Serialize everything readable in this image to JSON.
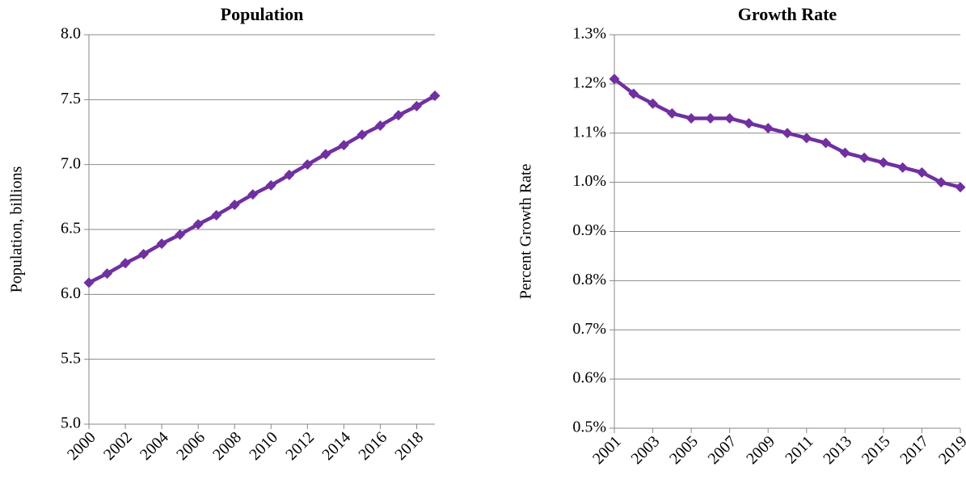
{
  "chart_data": [
    {
      "type": "line",
      "title": "Population",
      "y_label": "Population, billions",
      "x": [
        2000,
        2001,
        2002,
        2003,
        2004,
        2005,
        2006,
        2007,
        2008,
        2009,
        2010,
        2011,
        2012,
        2013,
        2014,
        2015,
        2016,
        2017,
        2018,
        2019
      ],
      "values": [
        6.09,
        6.16,
        6.24,
        6.31,
        6.39,
        6.46,
        6.54,
        6.61,
        6.69,
        6.77,
        6.84,
        6.92,
        7.0,
        7.08,
        7.15,
        7.23,
        7.3,
        7.38,
        7.45,
        7.53
      ],
      "color": "#7030a0",
      "xlim": [
        2000,
        2019
      ],
      "xticks": [
        2000,
        2002,
        2004,
        2006,
        2008,
        2010,
        2012,
        2014,
        2016,
        2018
      ],
      "ylim": [
        5,
        8
      ],
      "yticks": [
        {
          "value": 5,
          "label": "5.0"
        },
        {
          "value": 5.5,
          "label": "5.5"
        },
        {
          "value": 6,
          "label": "6.0"
        },
        {
          "value": 6.5,
          "label": "6.5"
        },
        {
          "value": 7,
          "label": "7.0"
        },
        {
          "value": 7.5,
          "label": "7.5"
        },
        {
          "value": 8,
          "label": "8.0"
        }
      ],
      "grid": true
    },
    {
      "type": "line",
      "title": "Growth Rate",
      "y_label": "Percent Growth Rate",
      "x": [
        2001,
        2002,
        2003,
        2004,
        2005,
        2006,
        2007,
        2008,
        2009,
        2010,
        2011,
        2012,
        2013,
        2014,
        2015,
        2016,
        2017,
        2018,
        2019
      ],
      "values": [
        1.21,
        1.18,
        1.16,
        1.14,
        1.13,
        1.13,
        1.13,
        1.12,
        1.11,
        1.1,
        1.09,
        1.08,
        1.06,
        1.05,
        1.04,
        1.03,
        1.02,
        1.0,
        0.99
      ],
      "color": "#7030a0",
      "xlim": [
        2001,
        2019
      ],
      "xticks": [
        2001,
        2003,
        2005,
        2007,
        2009,
        2011,
        2013,
        2015,
        2017,
        2019
      ],
      "ylim": [
        0.5,
        1.3
      ],
      "yticks": [
        {
          "value": 0.5,
          "label": "0.5%"
        },
        {
          "value": 0.6,
          "label": "0.6%"
        },
        {
          "value": 0.7,
          "label": "0.7%"
        },
        {
          "value": 0.8,
          "label": "0.8%"
        },
        {
          "value": 0.9,
          "label": "0.9%"
        },
        {
          "value": 1.0,
          "label": "1.0%"
        },
        {
          "value": 1.1,
          "label": "1.1%"
        },
        {
          "value": 1.2,
          "label": "1.2%"
        },
        {
          "value": 1.3,
          "label": "1.3%"
        }
      ],
      "grid": true
    }
  ]
}
